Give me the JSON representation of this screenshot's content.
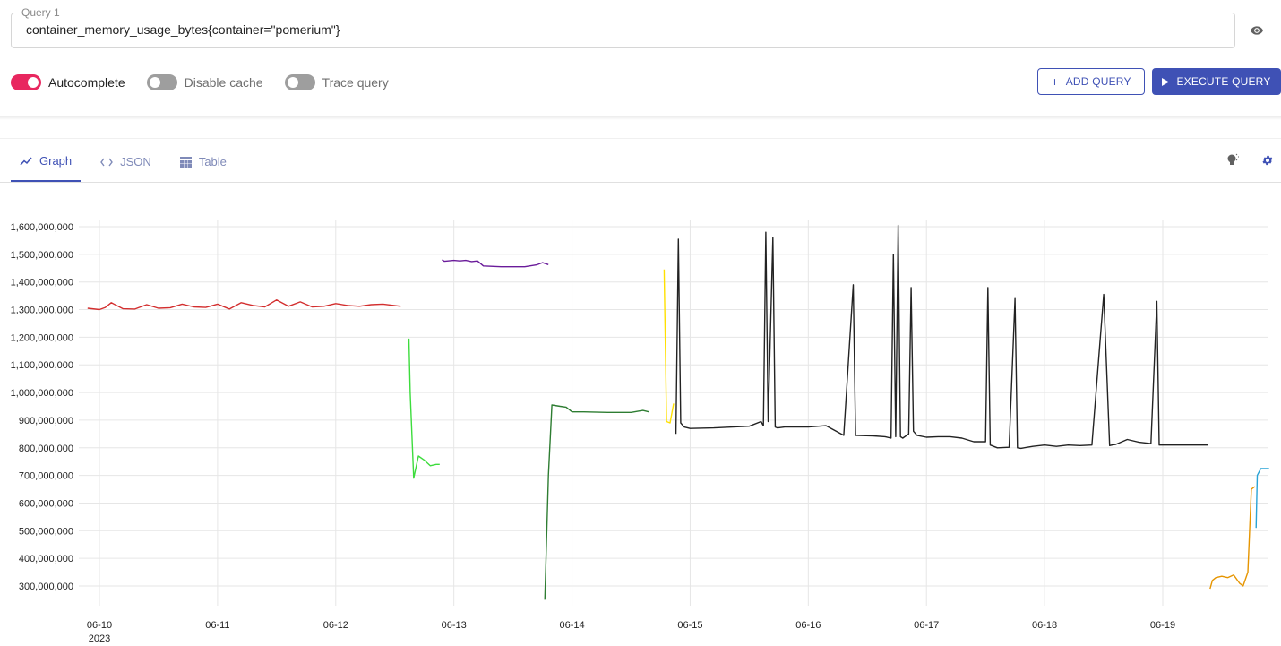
{
  "query": {
    "legend": "Query 1",
    "value": "container_memory_usage_bytes{container=\"pomerium\"}"
  },
  "toggles": [
    {
      "label": "Autocomplete",
      "on": true
    },
    {
      "label": "Disable cache",
      "on": false
    },
    {
      "label": "Trace query",
      "on": false
    }
  ],
  "buttons": {
    "add_query": "ADD QUERY",
    "execute_query": "EXECUTE QUERY"
  },
  "tabs": [
    {
      "label": "Graph",
      "icon": "line-chart-icon",
      "active": true
    },
    {
      "label": "JSON",
      "icon": "code-icon",
      "active": false
    },
    {
      "label": "Table",
      "icon": "table-icon",
      "active": false
    }
  ],
  "colors": {
    "accent": "#3f51b5",
    "toggle_on": "#e8275f"
  },
  "chart_data": {
    "type": "line",
    "y_ticks": [
      "1,600,000,000",
      "1,500,000,000",
      "1,400,000,000",
      "1,300,000,000",
      "1,200,000,000",
      "1,100,000,000",
      "1,000,000,000",
      "900,000,000",
      "800,000,000",
      "700,000,000",
      "600,000,000",
      "500,000,000",
      "400,000,000",
      "300,000,000"
    ],
    "x_ticks": [
      "06-10",
      "06-11",
      "06-12",
      "06-13",
      "06-14",
      "06-15",
      "06-16",
      "06-17",
      "06-18",
      "06-19"
    ],
    "x_year_label": "2023",
    "xlim": [
      9.85,
      19.9
    ],
    "ylim": [
      220000000,
      1650000000
    ],
    "grid": true,
    "series": [
      {
        "color": "#d32f2f",
        "x": [
          9.9,
          10.0,
          10.05,
          10.1,
          10.2,
          10.3,
          10.4,
          10.5,
          10.6,
          10.7,
          10.8,
          10.9,
          11.0,
          11.1,
          11.2,
          11.3,
          11.4,
          11.5,
          11.6,
          11.7,
          11.8,
          11.9,
          12.0,
          12.1,
          12.2,
          12.3,
          12.4,
          12.55
        ],
        "y": [
          1305000000,
          1300000000,
          1308000000,
          1325000000,
          1303000000,
          1302000000,
          1318000000,
          1305000000,
          1307000000,
          1320000000,
          1310000000,
          1308000000,
          1320000000,
          1302000000,
          1325000000,
          1315000000,
          1310000000,
          1335000000,
          1312000000,
          1328000000,
          1310000000,
          1312000000,
          1322000000,
          1315000000,
          1312000000,
          1318000000,
          1320000000,
          1312000000
        ]
      },
      {
        "color": "#3ddc3d",
        "x": [
          12.62,
          12.63,
          12.66,
          12.7,
          12.75,
          12.8,
          12.85,
          12.88
        ],
        "y": [
          1195000000,
          1000000000,
          690000000,
          770000000,
          755000000,
          735000000,
          740000000,
          740000000
        ]
      },
      {
        "color": "#6a1b9a",
        "x": [
          12.9,
          12.92,
          13.0,
          13.05,
          13.1,
          13.15,
          13.2,
          13.25,
          13.4,
          13.6,
          13.7,
          13.75,
          13.8
        ],
        "y": [
          1480000000,
          1475000000,
          1478000000,
          1476000000,
          1478000000,
          1474000000,
          1476000000,
          1458000000,
          1455000000,
          1455000000,
          1462000000,
          1470000000,
          1463000000
        ]
      },
      {
        "color": "#2e7d32",
        "x": [
          13.77,
          13.8,
          13.83,
          13.9,
          13.95,
          14.0,
          14.1,
          14.3,
          14.5,
          14.6,
          14.65
        ],
        "y": [
          250000000,
          700000000,
          955000000,
          950000000,
          947000000,
          930000000,
          930000000,
          928000000,
          928000000,
          935000000,
          930000000
        ]
      },
      {
        "color": "#ffe000",
        "x": [
          14.78,
          14.8,
          14.83,
          14.86
        ],
        "y": [
          1445000000,
          895000000,
          890000000,
          960000000
        ]
      },
      {
        "color": "#222222",
        "x": [
          14.88,
          14.9,
          14.92,
          14.95,
          15.0,
          15.2,
          15.5,
          15.6,
          15.62,
          15.64,
          15.66,
          15.7,
          15.72,
          15.74,
          15.8,
          16.0,
          16.15,
          16.3,
          16.38,
          16.4,
          16.55,
          16.65,
          16.7,
          16.72,
          16.74,
          16.76,
          16.78,
          16.8,
          16.85,
          16.87,
          16.89,
          16.92,
          17.0,
          17.1,
          17.2,
          17.3,
          17.4,
          17.5,
          17.52,
          17.54,
          17.6,
          17.7,
          17.75,
          17.77,
          17.8,
          17.9,
          18.0,
          18.1,
          18.2,
          18.3,
          18.4,
          18.5,
          18.55,
          18.57,
          18.6,
          18.7,
          18.8,
          18.9,
          18.95,
          18.97,
          19.0,
          19.1,
          19.2,
          19.3,
          19.38
        ],
        "y": [
          850000000,
          1555000000,
          890000000,
          875000000,
          870000000,
          872000000,
          878000000,
          895000000,
          880000000,
          1580000000,
          895000000,
          1560000000,
          875000000,
          872000000,
          875000000,
          875000000,
          880000000,
          845000000,
          1390000000,
          845000000,
          843000000,
          840000000,
          835000000,
          1500000000,
          840000000,
          1605000000,
          840000000,
          835000000,
          850000000,
          1380000000,
          860000000,
          845000000,
          838000000,
          840000000,
          840000000,
          835000000,
          822000000,
          822000000,
          1380000000,
          810000000,
          800000000,
          802000000,
          1340000000,
          800000000,
          798000000,
          805000000,
          810000000,
          805000000,
          810000000,
          808000000,
          810000000,
          1355000000,
          808000000,
          810000000,
          812000000,
          830000000,
          820000000,
          815000000,
          1330000000,
          810000000,
          810000000,
          810000000,
          810000000,
          810000000,
          810000000
        ]
      },
      {
        "color": "#e69500",
        "x": [
          19.4,
          19.42,
          19.45,
          19.5,
          19.55,
          19.6,
          19.65,
          19.68,
          19.72,
          19.75,
          19.78
        ],
        "y": [
          290000000,
          320000000,
          330000000,
          335000000,
          330000000,
          340000000,
          310000000,
          300000000,
          350000000,
          650000000,
          660000000
        ]
      },
      {
        "color": "#29a3d6",
        "x": [
          19.79,
          19.8,
          19.83,
          19.9
        ],
        "y": [
          510000000,
          700000000,
          725000000,
          725000000
        ]
      }
    ]
  }
}
